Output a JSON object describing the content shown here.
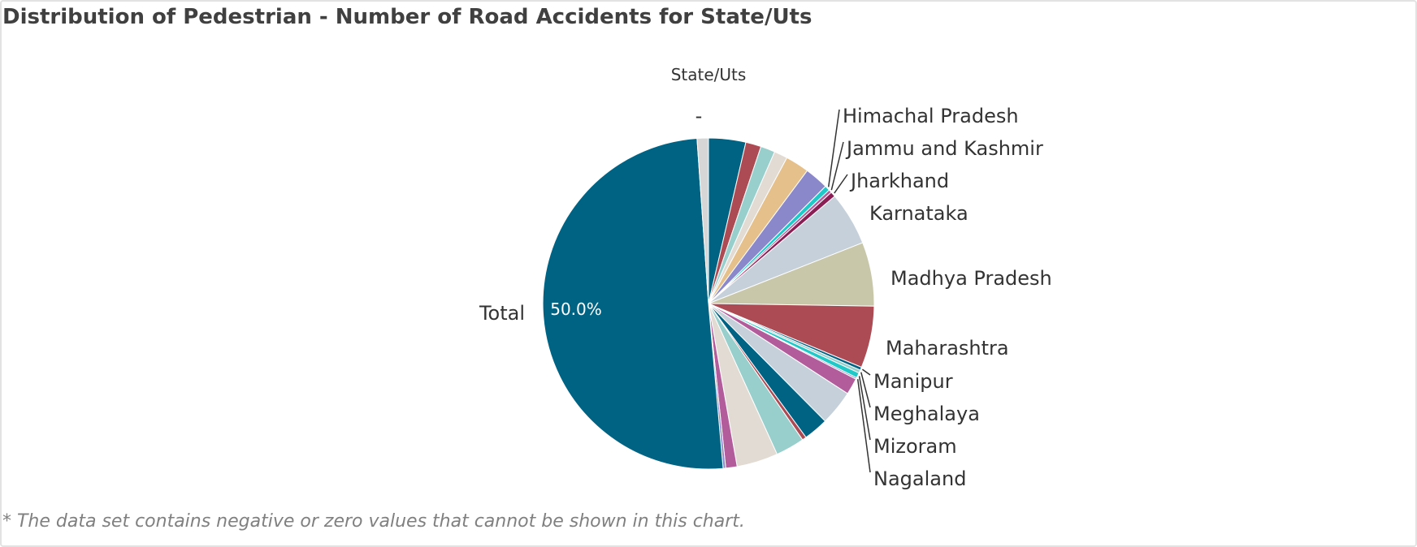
{
  "title": "Distribution of Pedestrian - Number of Road Accidents for State/Uts",
  "footnote": "* The data set contains negative or zero values that cannot be shown in this chart.",
  "chart_data": {
    "type": "pie",
    "legend_title": "State/Uts",
    "start_angle_deg": 0,
    "direction": "clockwise",
    "slices": [
      {
        "name": "",
        "value": 3.6,
        "color": "#006384"
      },
      {
        "name": "",
        "value": 1.5,
        "color": "#ad4b54"
      },
      {
        "name": "",
        "value": 1.4,
        "color": "#98cfcc"
      },
      {
        "name": "",
        "value": 1.3,
        "color": "#e2dbd3"
      },
      {
        "name": "",
        "value": 2.3,
        "color": "#e5c08b"
      },
      {
        "name": "",
        "value": 2.3,
        "color": "#8b87cb"
      },
      {
        "name": "Himachal Pradesh",
        "value": 0.5,
        "color": "#20c8c8"
      },
      {
        "name": "Jammu and Kashmir",
        "value": 0.3,
        "color": "#b25c9c"
      },
      {
        "name": "Jharkhand",
        "value": 0.5,
        "color": "#8b1f55"
      },
      {
        "name": "Karnataka",
        "value": 5.2,
        "color": "#c6d0da"
      },
      {
        "name": "Madhya Pradesh",
        "value": 6.2,
        "color": "#c8c7aa"
      },
      {
        "name": "Maharashtra",
        "value": 6.0,
        "color": "#ad4b54"
      },
      {
        "name": "Manipur",
        "value": 0.3,
        "color": "#006384"
      },
      {
        "name": "Meghalaya",
        "value": 0.3,
        "color": "#98cfcc"
      },
      {
        "name": "Mizoram",
        "value": 0.5,
        "color": "#20c8c8"
      },
      {
        "name": "Nagaland",
        "value": 0.15,
        "color": "#8b87cb"
      },
      {
        "name": "",
        "value": 1.6,
        "color": "#b25c9c"
      },
      {
        "name": "",
        "value": 3.4,
        "color": "#c6d0da"
      },
      {
        "name": "",
        "value": 2.4,
        "color": "#006384"
      },
      {
        "name": "",
        "value": 0.4,
        "color": "#ad4b54"
      },
      {
        "name": "",
        "value": 2.8,
        "color": "#98cfcc"
      },
      {
        "name": "",
        "value": 4.0,
        "color": "#e2dbd3"
      },
      {
        "name": "",
        "value": 1.1,
        "color": "#b25c9c"
      },
      {
        "name": "",
        "value": 0.25,
        "color": "#8b87cb"
      },
      {
        "name": "Total",
        "value": 50.0,
        "color": "#006384",
        "data_label": "50.0%"
      },
      {
        "name": "-",
        "value": 1.1,
        "color": "#d6d6d6"
      }
    ]
  }
}
